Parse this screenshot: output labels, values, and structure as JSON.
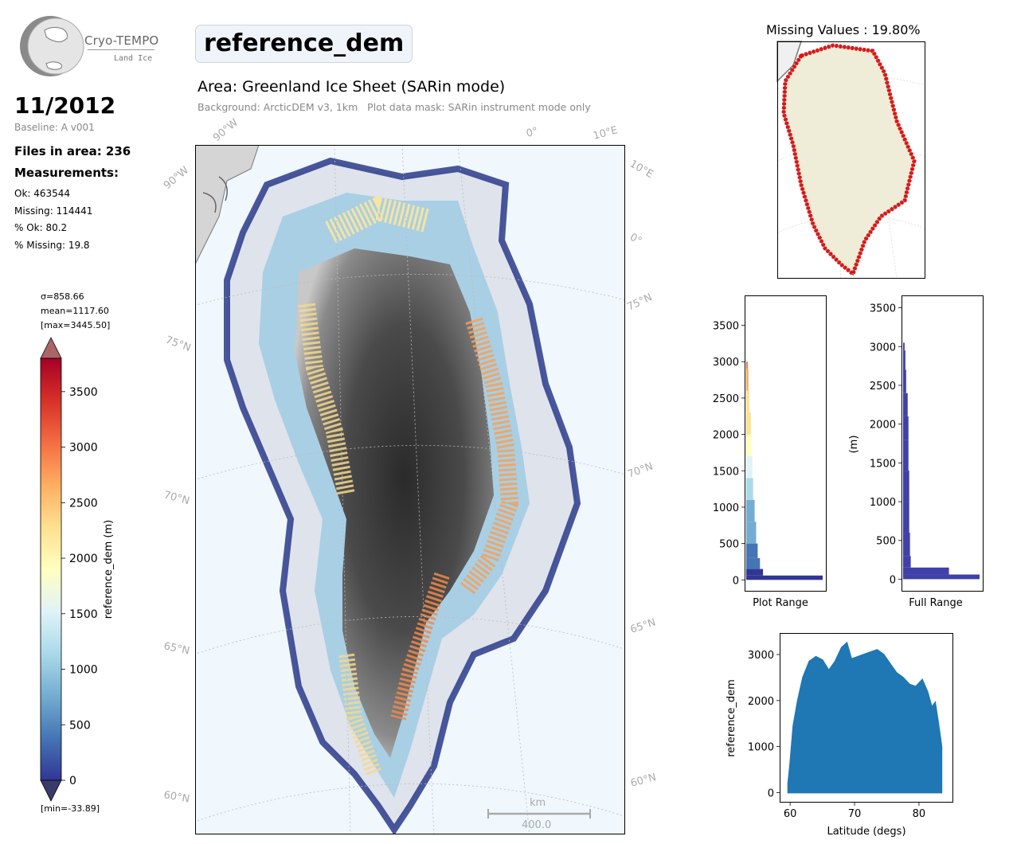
{
  "header": {
    "logo_text": "Cryo-TEMPO",
    "logo_sub": "Land Ice",
    "date": "11/2012",
    "baseline": "Baseline: A v001",
    "files": "Files in area: 236",
    "measurements_heading": "Measurements:",
    "stats": [
      "Ok: 463544",
      "Missing: 114441",
      "% Ok: 80.2",
      "% Missing: 19.8"
    ],
    "title": "reference_dem",
    "area": "Area: Greenland Ice Sheet (SARin mode)",
    "background": "Background: ArcticDEM v3, 1km   Plot data mask: SARin instrument mode only"
  },
  "colorbar": {
    "label": "reference_dem (m)",
    "sigma": "σ=858.66",
    "mean": "mean=1117.60",
    "max": "[max=3445.50]",
    "min": "[min=-33.89]",
    "ticks": [
      "0",
      "500",
      "1000",
      "1500",
      "2000",
      "2500",
      "3000",
      "3500"
    ],
    "range": [
      0,
      3800
    ],
    "colors": [
      "#313695",
      "#4575b4",
      "#74add1",
      "#abd9e9",
      "#e0f3f8",
      "#ffffbf",
      "#fee090",
      "#fdae61",
      "#f46d43",
      "#d73027",
      "#a50026"
    ]
  },
  "map": {
    "lat_labels_left": [
      "75°N",
      "70°N",
      "65°N",
      "60°N"
    ],
    "lat_labels_right": [
      "75°N",
      "70°N",
      "65°N",
      "60°N"
    ],
    "lon_labels_top": [
      "90°W",
      "0°",
      "10°E"
    ],
    "lon_labels_left": [
      "90°W"
    ],
    "lon_labels_right": [
      "10°E",
      "0°"
    ],
    "scale_unit": "km",
    "scale_value": "400.0"
  },
  "missing_map": {
    "title": "Missing Values : 19.80%",
    "land_color": "#efedd8",
    "missing_color": "#ff0000"
  },
  "chart_data": [
    {
      "type": "bar",
      "name": "histogram",
      "title": "",
      "xlabel": "Plot Range",
      "ylabel": "",
      "ylim": [
        -150,
        3900
      ],
      "y_ticks": [
        "0",
        "500",
        "1000",
        "1500",
        "2000",
        "2500",
        "3000",
        "3500"
      ],
      "bins": [
        {
          "y": 0,
          "v": 1.0
        },
        {
          "y": 60,
          "v": 0.22
        },
        {
          "y": 150,
          "v": 0.18
        },
        {
          "y": 300,
          "v": 0.15
        },
        {
          "y": 500,
          "v": 0.13
        },
        {
          "y": 800,
          "v": 0.11
        },
        {
          "y": 1100,
          "v": 0.09
        },
        {
          "y": 1400,
          "v": 0.08
        },
        {
          "y": 1700,
          "v": 0.07
        },
        {
          "y": 2000,
          "v": 0.06
        },
        {
          "y": 2300,
          "v": 0.04
        },
        {
          "y": 2600,
          "v": 0.03
        },
        {
          "y": 2900,
          "v": 0.02
        },
        {
          "y": 3000,
          "v": 0.0
        }
      ]
    },
    {
      "type": "bar",
      "name": "histogram",
      "title": "",
      "xlabel": "Full Range",
      "ylabel": "(m)",
      "ylim": [
        -150,
        3650
      ],
      "y_ticks": [
        "0",
        "500",
        "1000",
        "1500",
        "2000",
        "2500",
        "3000",
        "3500"
      ],
      "color": "#4040a8",
      "bins": [
        {
          "y": 0,
          "v": 1.0
        },
        {
          "y": 60,
          "v": 0.6
        },
        {
          "y": 150,
          "v": 0.1
        },
        {
          "y": 300,
          "v": 0.09
        },
        {
          "y": 600,
          "v": 0.08
        },
        {
          "y": 1000,
          "v": 0.08
        },
        {
          "y": 1400,
          "v": 0.07
        },
        {
          "y": 1800,
          "v": 0.07
        },
        {
          "y": 2100,
          "v": 0.06
        },
        {
          "y": 2400,
          "v": 0.04
        },
        {
          "y": 2700,
          "v": 0.03
        },
        {
          "y": 2950,
          "v": 0.02
        },
        {
          "y": 3050,
          "v": 0.0
        }
      ]
    },
    {
      "type": "scatter",
      "title": "",
      "xlabel": "Latitude (degs)",
      "ylabel": "reference_dem",
      "xlim": [
        58.5,
        85.2
      ],
      "ylim": [
        -200,
        3450
      ],
      "x_ticks": [
        60,
        70,
        80
      ],
      "y_ticks": [
        0,
        1000,
        2000,
        3000
      ],
      "color": "#1f77b4",
      "upper_envelope": [
        [
          59.7,
          200
        ],
        [
          60.0,
          600
        ],
        [
          60.5,
          1450
        ],
        [
          61.2,
          2000
        ],
        [
          62.0,
          2500
        ],
        [
          63.0,
          2850
        ],
        [
          64.0,
          2950
        ],
        [
          65.0,
          2880
        ],
        [
          66.0,
          2650
        ],
        [
          67.0,
          2850
        ],
        [
          68.0,
          3150
        ],
        [
          68.8,
          3250
        ],
        [
          69.5,
          2900
        ],
        [
          70.5,
          2950
        ],
        [
          71.5,
          3000
        ],
        [
          72.5,
          3050
        ],
        [
          73.5,
          3100
        ],
        [
          74.5,
          3000
        ],
        [
          75.5,
          2800
        ],
        [
          76.5,
          2600
        ],
        [
          77.5,
          2500
        ],
        [
          78.5,
          2350
        ],
        [
          79.5,
          2300
        ],
        [
          80.5,
          2450
        ],
        [
          81.3,
          2200
        ],
        [
          82.0,
          1850
        ],
        [
          82.5,
          1950
        ],
        [
          83.0,
          1500
        ],
        [
          83.5,
          1000
        ]
      ],
      "lower_envelope": [
        [
          59.7,
          0
        ],
        [
          83.5,
          0
        ]
      ]
    }
  ]
}
